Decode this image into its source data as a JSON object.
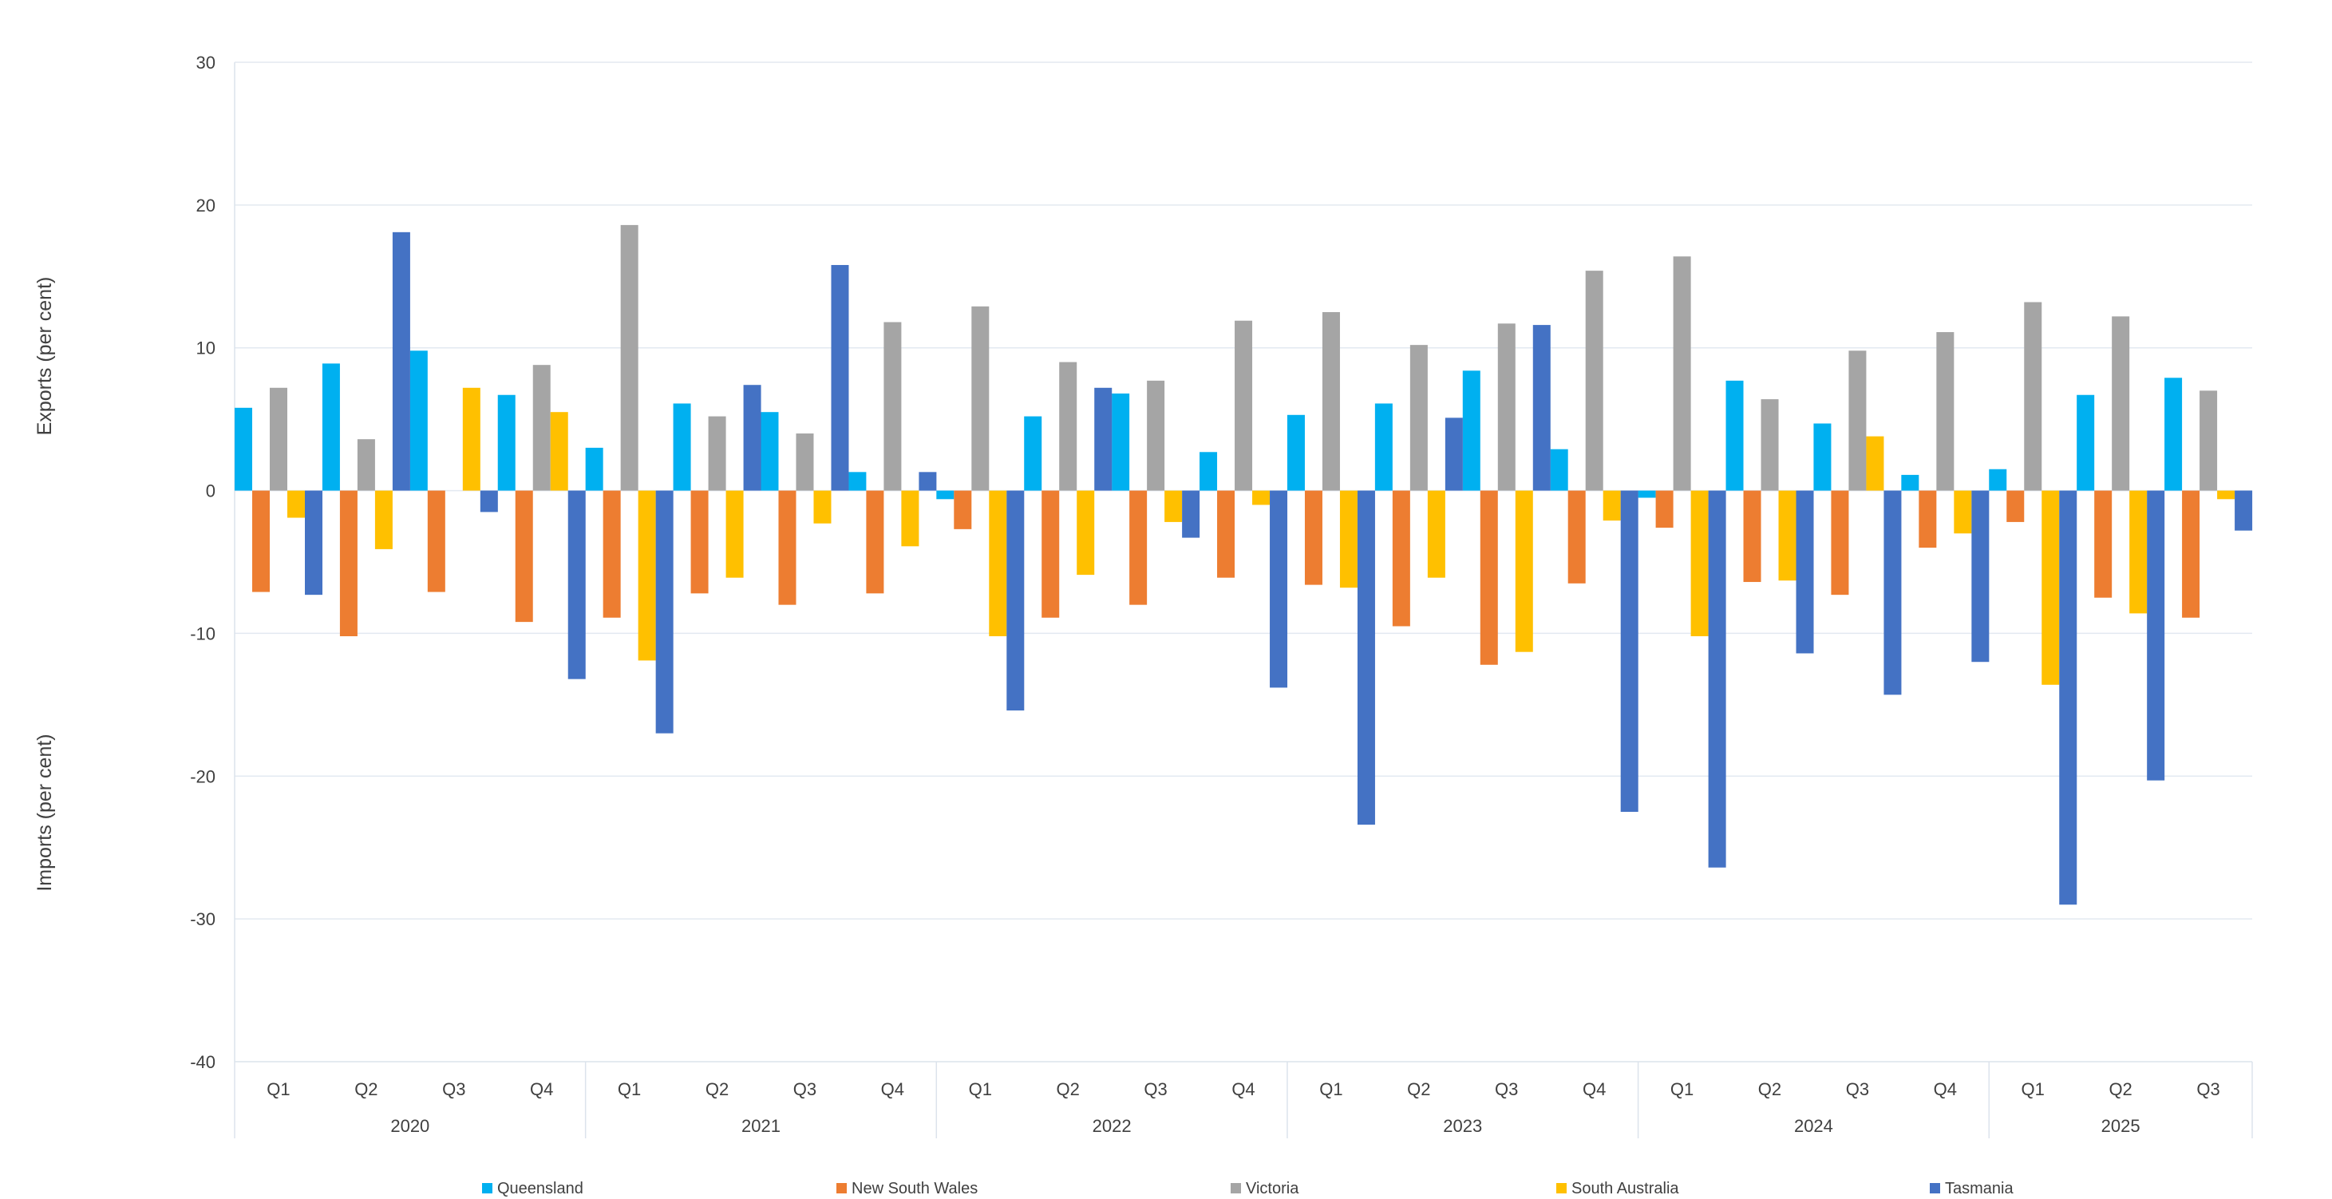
{
  "chart_data": {
    "type": "bar",
    "title": "",
    "ylabel_top": "Exports (per cent)",
    "ylabel_bottom": "Imports (per cent)",
    "ylim": [
      -40,
      30
    ],
    "yticks": [
      30,
      20,
      10,
      0,
      -10,
      -20,
      -30,
      -40
    ],
    "grid": true,
    "legend_position": "bottom",
    "groups": [
      {
        "year": "2020",
        "quarters": [
          "Q1",
          "Q2",
          "Q3",
          "Q4"
        ]
      },
      {
        "year": "2021",
        "quarters": [
          "Q1",
          "Q2",
          "Q3",
          "Q4"
        ]
      },
      {
        "year": "2022",
        "quarters": [
          "Q1",
          "Q2",
          "Q3",
          "Q4"
        ]
      },
      {
        "year": "2023",
        "quarters": [
          "Q1",
          "Q2",
          "Q3",
          "Q4"
        ]
      },
      {
        "year": "2024",
        "quarters": [
          "Q1",
          "Q2",
          "Q3",
          "Q4"
        ]
      },
      {
        "year": "2025",
        "quarters": [
          "Q1",
          "Q2",
          "Q3"
        ]
      }
    ],
    "series": [
      {
        "name": "Queensland",
        "color": "#00B0F0",
        "values": [
          5.8,
          8.9,
          9.8,
          6.7,
          3.0,
          6.1,
          5.5,
          1.3,
          -0.6,
          5.2,
          6.8,
          2.7,
          5.3,
          6.1,
          8.4,
          2.9,
          -0.5,
          7.7,
          4.7,
          1.1,
          1.5,
          6.7,
          7.9
        ]
      },
      {
        "name": "New South Wales",
        "color": "#ED7D31",
        "values": [
          -7.1,
          -10.2,
          -7.1,
          -9.2,
          -8.9,
          -7.2,
          -8.0,
          -7.2,
          -2.7,
          -8.9,
          -8.0,
          -6.1,
          -6.6,
          -9.5,
          -12.2,
          -6.5,
          -2.6,
          -6.4,
          -7.3,
          -4.0,
          -2.2,
          -7.5,
          -8.9
        ]
      },
      {
        "name": "Victoria",
        "color": "#A5A5A5",
        "values": [
          7.2,
          3.6,
          0,
          8.8,
          18.6,
          5.2,
          4.0,
          11.8,
          12.9,
          9.0,
          7.7,
          11.9,
          12.5,
          10.2,
          11.7,
          15.4,
          16.4,
          6.4,
          9.8,
          11.1,
          13.2,
          12.2,
          7.0
        ]
      },
      {
        "name": "South Australia",
        "color": "#FFC000",
        "values": [
          -1.9,
          -4.1,
          7.2,
          5.5,
          -11.9,
          -6.1,
          -2.3,
          -3.9,
          -10.2,
          -5.9,
          -2.2,
          -1.0,
          -6.8,
          -6.1,
          -11.3,
          -2.1,
          -10.2,
          -6.3,
          3.8,
          -3.0,
          -13.6,
          -8.6,
          -0.6
        ]
      },
      {
        "name": "Tasmania",
        "color": "#4472C4",
        "values": [
          -7.3,
          18.1,
          -1.5,
          -13.2,
          -17.0,
          7.4,
          15.8,
          1.3,
          -15.4,
          7.2,
          -3.3,
          -13.8,
          -23.4,
          5.1,
          11.6,
          -22.5,
          -26.4,
          -11.4,
          -14.3,
          -12.0,
          -29.0,
          -20.3,
          -2.8
        ]
      }
    ]
  }
}
